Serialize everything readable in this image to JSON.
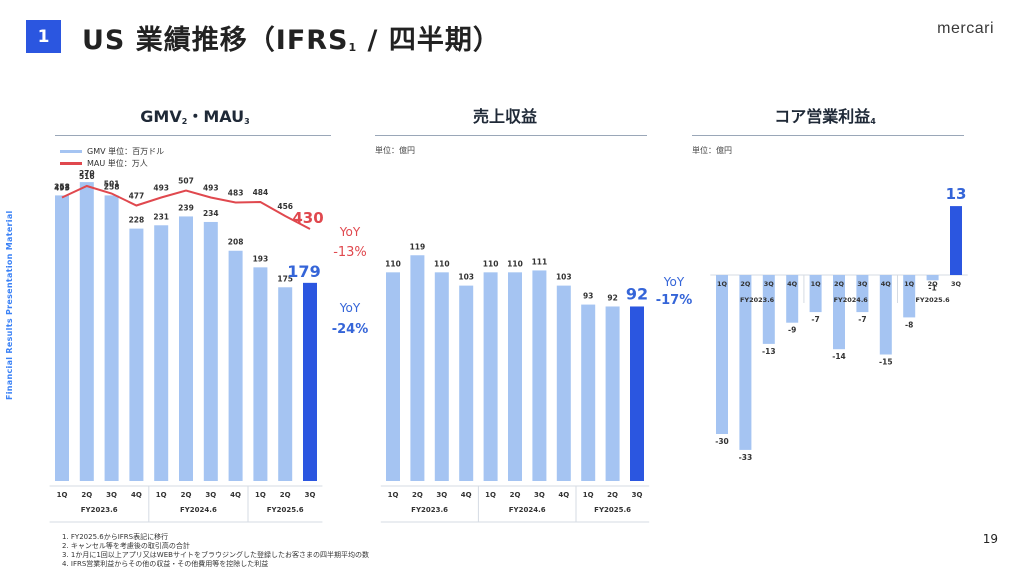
{
  "header": {
    "badge": "1",
    "title_main": "US 業績推移（IFRS",
    "title_sub": "1",
    "title_tail": " / 四半期）",
    "brand": "mercari"
  },
  "side_label": "Financial Results Presentation Material",
  "colors": {
    "bar": "#a5c4f2",
    "bar_highlight": "#2b56e0",
    "line": "#e0484e",
    "yoy_blue": "#3565d8",
    "yoy_red": "#e0484e"
  },
  "panels": {
    "gmv": {
      "title": "GMV",
      "title_sub1": "2",
      "title_mid": "・MAU",
      "title_sub2": "3",
      "legend_gmv": "GMV 単位：百万ドル",
      "legend_mau": "MAU 単位：万人"
    },
    "revenue": {
      "title": "売上収益",
      "unit": "単位：億円"
    },
    "core_profit": {
      "title": "コア営業利益",
      "title_sub": "4",
      "unit": "単位：億円"
    }
  },
  "chart_data": [
    {
      "type": "bar",
      "id": "gmv",
      "categories": [
        "1Q",
        "2Q",
        "3Q",
        "4Q",
        "1Q",
        "2Q",
        "3Q",
        "4Q",
        "1Q",
        "2Q",
        "3Q"
      ],
      "groups": [
        {
          "label": "FY2023.6",
          "count": 4
        },
        {
          "label": "FY2024.6",
          "count": 4
        },
        {
          "label": "FY2025.6",
          "count": 3
        }
      ],
      "series": [
        {
          "name": "GMV",
          "values": [
            258,
            270,
            258,
            228,
            231,
            239,
            234,
            208,
            193,
            175,
            179
          ]
        },
        {
          "name": "MAU",
          "type": "line",
          "values": [
            493,
            516,
            501,
            477,
            493,
            507,
            493,
            483,
            484,
            456,
            430
          ]
        }
      ],
      "yoy_gmv": [
        "YoY",
        "-24%"
      ],
      "yoy_mau": [
        "YoY",
        "-13%"
      ]
    },
    {
      "type": "bar",
      "id": "revenue",
      "categories": [
        "1Q",
        "2Q",
        "3Q",
        "4Q",
        "1Q",
        "2Q",
        "3Q",
        "4Q",
        "1Q",
        "2Q",
        "3Q"
      ],
      "groups": [
        {
          "label": "FY2023.6",
          "count": 4
        },
        {
          "label": "FY2024.6",
          "count": 4
        },
        {
          "label": "FY2025.6",
          "count": 3
        }
      ],
      "values": [
        110,
        119,
        110,
        103,
        110,
        110,
        111,
        103,
        93,
        92,
        92
      ],
      "yoy": [
        "YoY",
        "-17%"
      ]
    },
    {
      "type": "bar",
      "id": "core_profit",
      "categories": [
        "1Q",
        "2Q",
        "3Q",
        "4Q",
        "1Q",
        "2Q",
        "3Q",
        "4Q",
        "1Q",
        "2Q",
        "3Q"
      ],
      "groups": [
        {
          "label": "FY2023.6",
          "count": 4
        },
        {
          "label": "FY2024.6",
          "count": 4
        },
        {
          "label": "FY2025.6",
          "count": 3
        }
      ],
      "values": [
        -30,
        -33,
        -13,
        -9,
        -7,
        -14,
        -7,
        -15,
        -8,
        -1,
        13
      ]
    }
  ],
  "footnotes": [
    "1. FY2025.6からIFRS表記に移行",
    "2. キャンセル等を考慮後の取引高の合計",
    "3. 1か月に1回以上アプリ又はWEBサイトをブラウジングした登録したお客さまの四半期平均の数",
    "4. IFRS営業利益からその他の収益・その他費用等を控除した利益"
  ],
  "page_number": "19"
}
